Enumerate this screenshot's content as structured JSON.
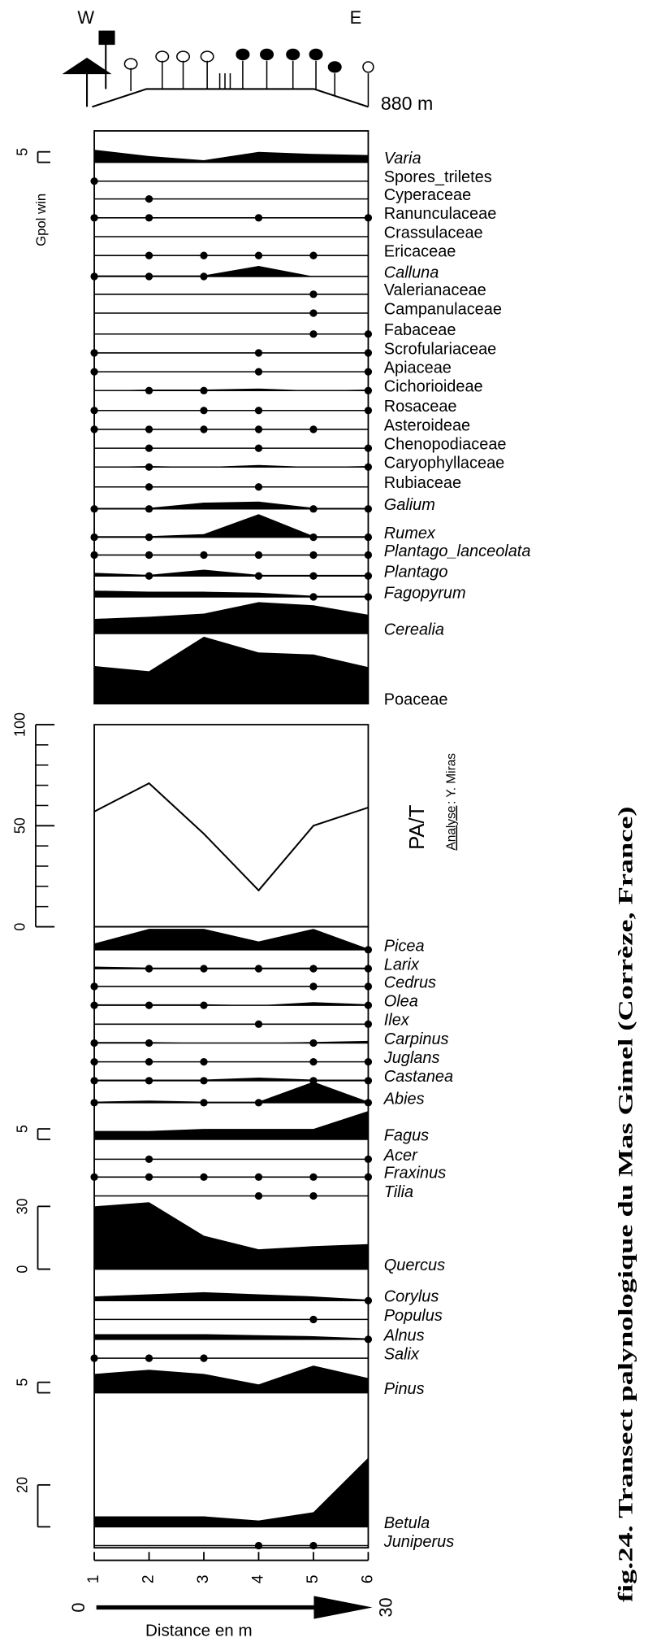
{
  "chart_data": {
    "type": "pollen",
    "x": [
      1,
      2,
      3,
      4,
      5,
      6
    ],
    "xlim": [
      1,
      6
    ],
    "xticks": [
      1,
      2,
      3,
      4,
      5,
      6
    ],
    "color": "#000000",
    "y_label": "Gpol win",
    "title": "fig.24. Transect palynologique du Mas Gimel (Corrèze, France)",
    "credit_label": "Analyse",
    "credit_name": ": Y. Miras",
    "profile": {
      "west": "W",
      "east": "E",
      "altitude": "880 m"
    },
    "distance": {
      "start": "0",
      "end": "30",
      "label": "Distance en m"
    },
    "taxa": [
      {
        "name": "Varia",
        "italic": true,
        "values": [
          6,
          3,
          1,
          5,
          4,
          3.5
        ],
        "scale": [
          5
        ]
      },
      {
        "name": "Spores_triletes",
        "italic": false,
        "values": [
          0.5,
          0,
          0,
          0,
          0,
          0
        ]
      },
      {
        "name": "Cyperaceae",
        "italic": false,
        "values": [
          0,
          0.5,
          0,
          0,
          0,
          0
        ]
      },
      {
        "name": "Ranunculaceae",
        "italic": false,
        "values": [
          0.5,
          0.5,
          0,
          0.5,
          0,
          0.5
        ]
      },
      {
        "name": "Crassulaceae",
        "italic": false,
        "values": [
          0,
          0,
          0,
          0,
          0,
          0
        ]
      },
      {
        "name": "Ericaceae",
        "italic": false,
        "values": [
          0,
          0.5,
          0.5,
          0.5,
          0.5,
          0
        ]
      },
      {
        "name": "Calluna",
        "italic": true,
        "values": [
          0.5,
          0.5,
          0.5,
          5,
          0,
          0
        ]
      },
      {
        "name": "Valerianaceae",
        "italic": false,
        "values": [
          0,
          0,
          0,
          0,
          0.5,
          0
        ]
      },
      {
        "name": "Campanulaceae",
        "italic": false,
        "values": [
          0,
          0,
          0,
          0,
          0.5,
          0
        ]
      },
      {
        "name": "Fabaceae",
        "italic": false,
        "values": [
          0,
          0,
          0,
          0,
          0.5,
          0.5
        ]
      },
      {
        "name": "Scrofulariaceae",
        "italic": false,
        "values": [
          0.5,
          0,
          0,
          0.5,
          0,
          0.5
        ]
      },
      {
        "name": "Apiaceae",
        "italic": false,
        "values": [
          0.5,
          0,
          0,
          0.5,
          0,
          0.5
        ]
      },
      {
        "name": "Cichorioideae",
        "italic": false,
        "values": [
          0,
          0.5,
          0.5,
          1,
          0,
          0.5
        ]
      },
      {
        "name": "Rosaceae",
        "italic": false,
        "values": [
          0.5,
          0,
          0.5,
          0.5,
          0,
          0.5
        ]
      },
      {
        "name": "Asteroideae",
        "italic": false,
        "values": [
          0.5,
          0.5,
          0.5,
          0.5,
          0.5,
          0
        ]
      },
      {
        "name": "Chenopodiaceae",
        "italic": false,
        "values": [
          0,
          0.5,
          0,
          0.5,
          0,
          0.5
        ]
      },
      {
        "name": "Caryophyllaceae",
        "italic": false,
        "values": [
          0,
          0.5,
          0,
          1,
          0,
          0.5
        ]
      },
      {
        "name": "Rubiaceae",
        "italic": false,
        "values": [
          0,
          0.5,
          0,
          0.5,
          0,
          0
        ]
      },
      {
        "name": "Galium",
        "italic": true,
        "values": [
          0.5,
          0.5,
          3,
          3.5,
          0.5,
          0.5
        ]
      },
      {
        "name": "Rumex",
        "italic": true,
        "values": [
          0.5,
          0.5,
          1.5,
          11,
          0.5,
          0.5
        ]
      },
      {
        "name": "Plantago_lanceolata",
        "italic": true,
        "values": [
          0.5,
          0.5,
          0.5,
          0.5,
          0.5,
          0.5
        ]
      },
      {
        "name": "Plantago",
        "italic": true,
        "values": [
          1.5,
          0.5,
          3,
          0.5,
          0.5,
          0.5
        ]
      },
      {
        "name": "Fagopyrum",
        "italic": true,
        "values": [
          3,
          2.5,
          2.5,
          2,
          0.5,
          0.5
        ]
      },
      {
        "name": "Cerealia",
        "italic": true,
        "values": [
          7,
          8,
          9.5,
          15,
          13.5,
          9
        ]
      },
      {
        "name": "Poaceae",
        "italic": false,
        "values": [
          18,
          15.5,
          32,
          24.5,
          23.5,
          17.5
        ]
      },
      {
        "name": "Picea",
        "italic": true,
        "values": [
          3,
          10,
          10,
          4,
          10,
          0.5
        ]
      },
      {
        "name": "Larix",
        "italic": true,
        "values": [
          1,
          0.5,
          0.5,
          0.5,
          0.5,
          0.5
        ]
      },
      {
        "name": "Cedrus",
        "italic": true,
        "values": [
          0.5,
          0,
          0,
          0,
          0.5,
          0.5
        ]
      },
      {
        "name": "Olea",
        "italic": true,
        "values": [
          0.5,
          0.5,
          0.5,
          0,
          1.5,
          0.5
        ]
      },
      {
        "name": "Ilex",
        "italic": true,
        "values": [
          0,
          0,
          0,
          0.5,
          0,
          0.5
        ]
      },
      {
        "name": "Carpinus",
        "italic": true,
        "values": [
          0.5,
          0.5,
          0,
          0,
          0.5,
          1
        ]
      },
      {
        "name": "Juglans",
        "italic": true,
        "values": [
          0.5,
          0.5,
          0.5,
          0,
          0.5,
          0.5
        ]
      },
      {
        "name": "Castanea",
        "italic": true,
        "values": [
          0.5,
          0.5,
          0.5,
          1.5,
          0.5,
          0.5
        ]
      },
      {
        "name": "Abies",
        "italic": true,
        "values": [
          0.5,
          1,
          0.5,
          0.5,
          10,
          0.5
        ]
      },
      {
        "name": "Fagus",
        "italic": true,
        "values": [
          4,
          4,
          5,
          5,
          5,
          13.5
        ],
        "scale": [
          5
        ]
      },
      {
        "name": "Acer",
        "italic": true,
        "values": [
          0,
          0.5,
          0,
          0,
          0,
          0.5
        ]
      },
      {
        "name": "Fraxinus",
        "italic": true,
        "values": [
          0.5,
          0.5,
          0.5,
          0.5,
          0.5,
          0.5
        ]
      },
      {
        "name": "Tilia",
        "italic": true,
        "values": [
          0,
          0,
          0,
          0.5,
          0.5,
          0
        ]
      },
      {
        "name": "Quercus",
        "italic": true,
        "values": [
          30,
          32,
          16,
          9.5,
          11,
          12
        ],
        "scale": [
          0,
          30
        ]
      },
      {
        "name": "Corylus",
        "italic": true,
        "values": [
          2,
          3,
          4,
          3,
          2,
          0.5
        ]
      },
      {
        "name": "Populus",
        "italic": true,
        "values": [
          0,
          0,
          0,
          0,
          0.5,
          0
        ]
      },
      {
        "name": "Alnus",
        "italic": true,
        "values": [
          2.5,
          2.5,
          2.5,
          2,
          1.5,
          0.5
        ]
      },
      {
        "name": "Salix",
        "italic": true,
        "values": [
          0.5,
          0.5,
          0.5,
          0,
          0,
          0
        ]
      },
      {
        "name": "Pinus",
        "italic": true,
        "values": [
          9,
          11,
          9,
          4,
          13,
          7
        ],
        "scale": [
          5
        ]
      },
      {
        "name": "Betula",
        "italic": true,
        "values": [
          5,
          5,
          5,
          3,
          7,
          33
        ],
        "scale": [
          20
        ]
      },
      {
        "name": "Juniperus",
        "italic": true,
        "values": [
          0,
          0,
          0,
          0.5,
          0.5,
          0
        ]
      }
    ],
    "pat": {
      "label": "PA/T",
      "values": [
        57,
        71,
        46,
        18,
        50,
        59
      ],
      "ylim": [
        0,
        100
      ],
      "yticks": [
        0,
        50,
        100
      ],
      "minor_yticks": [
        10,
        20,
        30,
        40,
        60,
        70,
        80,
        90
      ]
    }
  }
}
